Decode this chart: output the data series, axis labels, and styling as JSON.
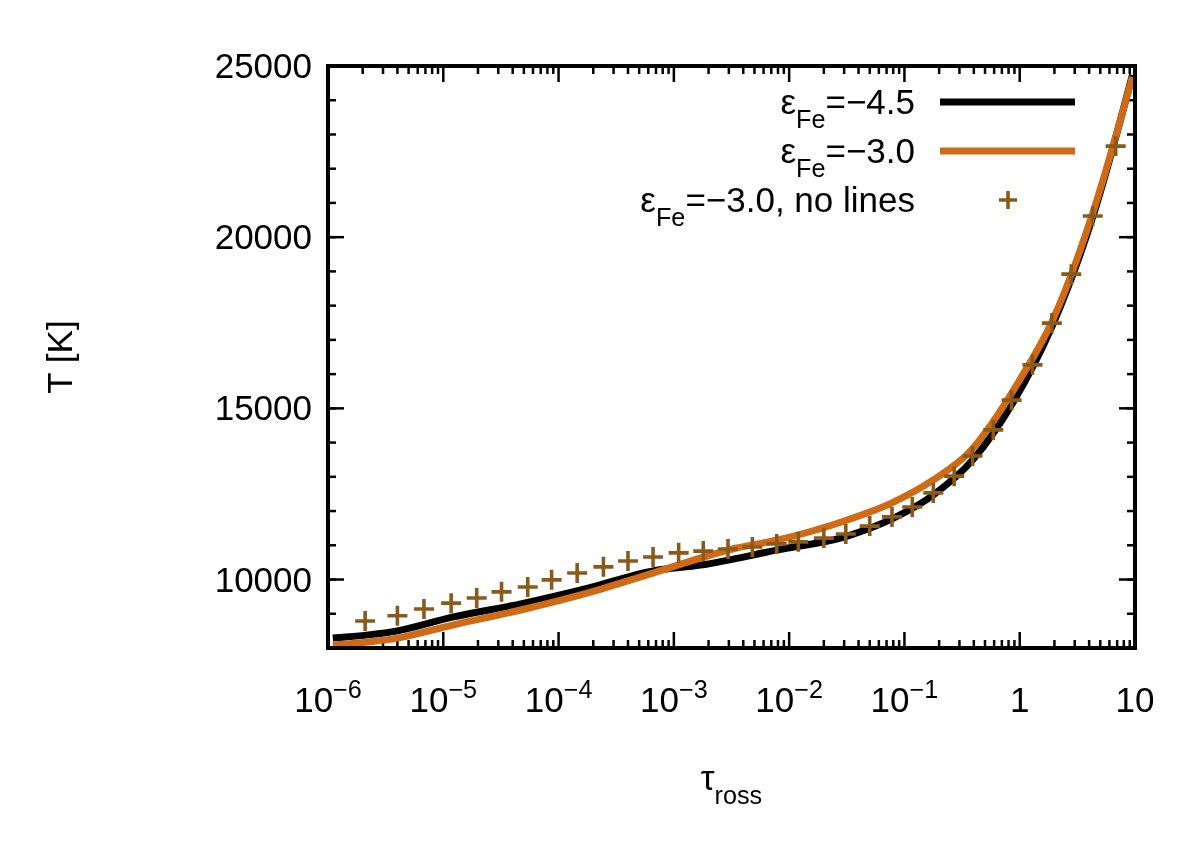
{
  "chart_data": {
    "type": "line",
    "xlabel": "τ$_{ross}$",
    "ylabel": "T [K]",
    "log": "x",
    "xlim": [
      1e-06,
      10
    ],
    "ylim": [
      8000,
      25000
    ],
    "xticks": [
      {
        "value": 1e-06,
        "label": "10$^{−6}$"
      },
      {
        "value": 1e-05,
        "label": "10$^{−5}$"
      },
      {
        "value": 0.0001,
        "label": "10$^{−4}$"
      },
      {
        "value": 0.001,
        "label": "10$^{−3}$"
      },
      {
        "value": 0.01,
        "label": "10$^{−2}$"
      },
      {
        "value": 0.1,
        "label": "10$^{−1}$"
      },
      1,
      10
    ],
    "yticks": [
      10000,
      15000,
      20000,
      25000
    ],
    "grid": false,
    "legend": "top right",
    "series": [
      {
        "name": "ε$_{Fe}$=−4.5",
        "color": "#000000",
        "line_style": "solid",
        "x": [
          1.1e-06,
          4e-06,
          1.2e-05,
          4.7e-05,
          0.00018,
          0.00066,
          0.0017,
          0.0078,
          0.032,
          0.078,
          0.178,
          0.39,
          0.87,
          1.9,
          4.3,
          9.5
        ],
        "values": [
          8290,
          8500,
          8900,
          9290,
          9750,
          10250,
          10420,
          10860,
          11270,
          11770,
          12470,
          13490,
          15160,
          17380,
          20590,
          24740
        ]
      },
      {
        "name": "ε$_{Fe}$=−3.0",
        "color": "#cf6a16",
        "line_style": "solid",
        "x": [
          1.1e-06,
          4e-06,
          1.2e-05,
          4.7e-05,
          0.00018,
          0.00066,
          0.0035,
          0.0078,
          0.032,
          0.078,
          0.178,
          0.36,
          1.0,
          1.9,
          4.3,
          9.5
        ],
        "values": [
          8090,
          8290,
          8670,
          9110,
          9610,
          10190,
          10920,
          11150,
          11740,
          12240,
          12910,
          13700,
          15830,
          17520,
          20700,
          24680
        ]
      },
      {
        "name": "ε$_{Fe}$=−3.0, no lines",
        "type": "scatter",
        "marker": "cross",
        "color": "#8b5a1b",
        "x": [
          2.1e-06,
          4e-06,
          6.8e-06,
          1.17e-05,
          1.95e-05,
          3.2e-05,
          5.4e-05,
          8.7e-05,
          0.000145,
          0.000245,
          0.0004,
          0.00066,
          0.0011,
          0.0018,
          0.00295,
          0.0048,
          0.0078,
          0.012,
          0.02,
          0.031,
          0.05,
          0.078,
          0.117,
          0.178,
          0.27,
          0.39,
          0.59,
          0.85,
          1.29,
          1.9,
          2.8,
          4.3,
          6.8
        ],
        "values": [
          8790,
          8940,
          9140,
          9310,
          9460,
          9640,
          9780,
          9990,
          10190,
          10370,
          10540,
          10660,
          10780,
          10830,
          10890,
          10950,
          11040,
          11100,
          11210,
          11330,
          11560,
          11830,
          12120,
          12530,
          13020,
          13610,
          14370,
          15240,
          16270,
          17490,
          18920,
          20620,
          22660
        ]
      }
    ]
  }
}
